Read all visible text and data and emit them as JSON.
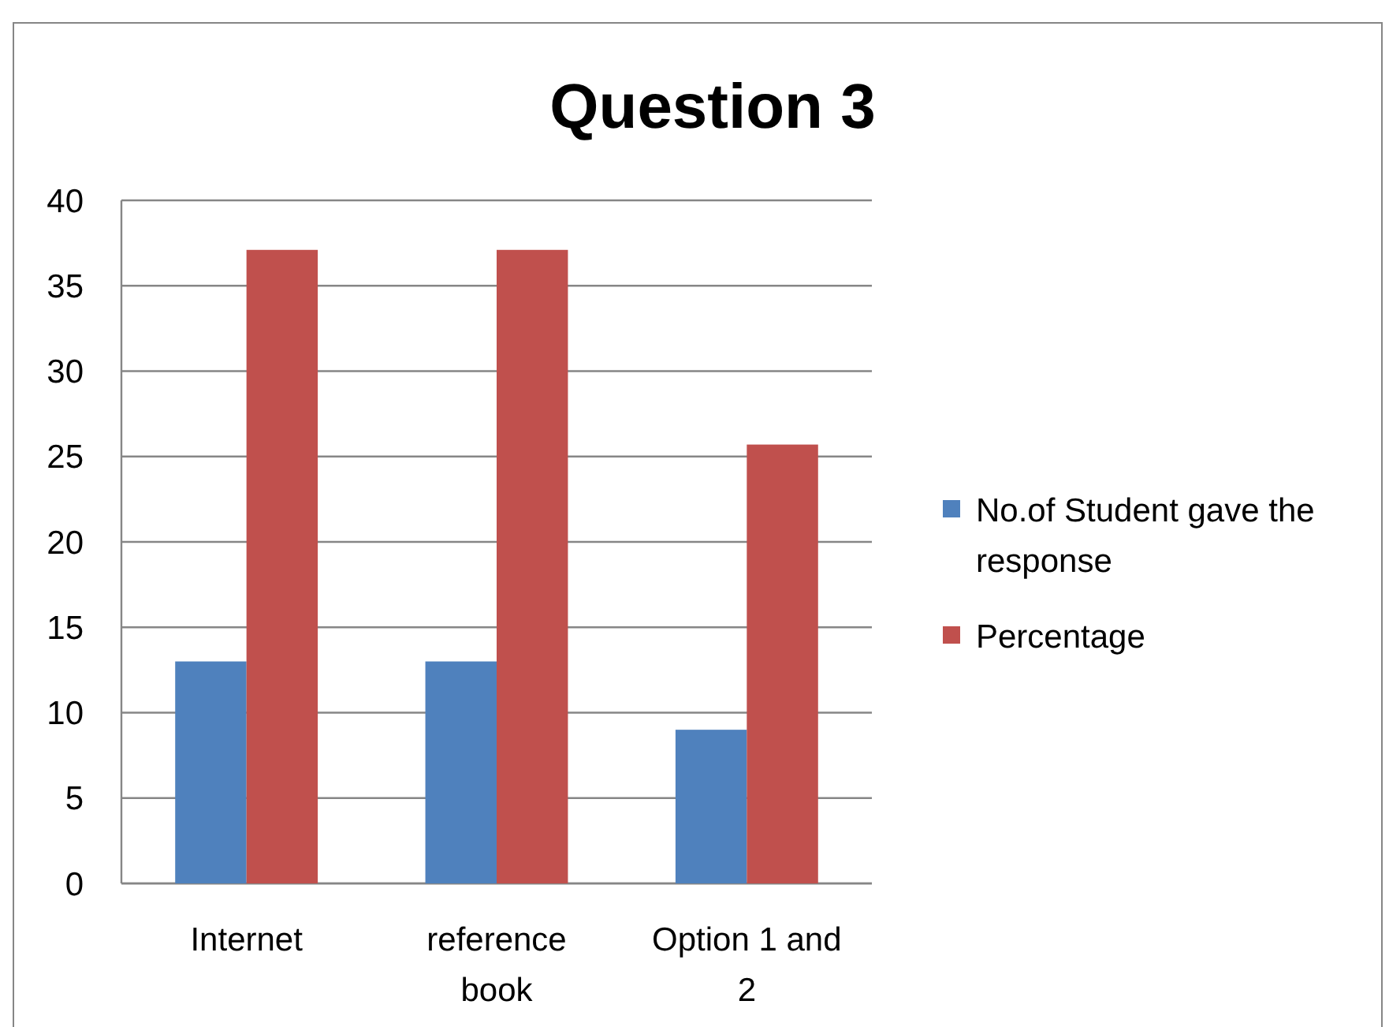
{
  "chart_data": {
    "type": "bar",
    "title": "Question 3",
    "categories": [
      "Internet",
      "reference book",
      "Option 1 and 2"
    ],
    "series": [
      {
        "name": "No.of Student gave the response",
        "color": "#4f81bd",
        "values": [
          13,
          13,
          9
        ]
      },
      {
        "name": "Percentage",
        "color": "#c0504d",
        "values": [
          37.1,
          37.1,
          25.7
        ]
      }
    ],
    "ylim": [
      0,
      40
    ],
    "yticks": [
      0,
      5,
      10,
      15,
      20,
      25,
      30,
      35,
      40
    ],
    "grid": "y",
    "legend": "right"
  }
}
